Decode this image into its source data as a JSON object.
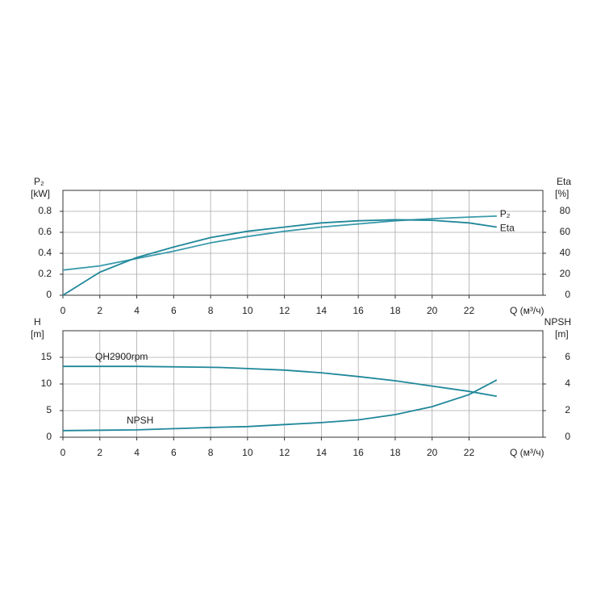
{
  "chart_data": [
    {
      "type": "line",
      "ylabel": "P₂",
      "yunit": "[kW]",
      "y2label": "Eta",
      "y2unit": "[%]",
      "xlabel": "Q (м³/ч)",
      "x": [
        0,
        2,
        4,
        6,
        8,
        10,
        12,
        14,
        16,
        18,
        20,
        22,
        23.5
      ],
      "series": [
        {
          "name": "P₂",
          "color": "#3a9aab",
          "axis": "y",
          "values": [
            0.24,
            0.28,
            0.35,
            0.42,
            0.5,
            0.56,
            0.61,
            0.65,
            0.68,
            0.71,
            0.73,
            0.745,
            0.755
          ]
        },
        {
          "name": "Eta",
          "color": "#1f8799",
          "axis": "y2",
          "values": [
            0,
            22,
            36,
            46,
            55,
            61,
            65,
            69,
            71,
            72,
            71.5,
            69,
            65
          ]
        }
      ],
      "xlim": [
        0,
        26
      ],
      "xticks": [
        0,
        2,
        4,
        6,
        8,
        10,
        12,
        14,
        16,
        18,
        20,
        22
      ],
      "ylim": [
        0,
        1
      ],
      "yticks": [
        0,
        0.2,
        0.4,
        0.6,
        0.8
      ],
      "y2lim": [
        0,
        100
      ],
      "y2ticks": [
        0,
        20,
        40,
        60,
        80
      ],
      "grid": true
    },
    {
      "type": "line",
      "ylabel": "H",
      "yunit": "[m]",
      "y2label": "NPSH",
      "y2unit": "[m]",
      "xlabel": "Q (м³/ч)",
      "x": [
        0,
        4,
        8.5,
        10,
        12,
        14,
        16,
        18,
        20,
        22,
        23.5
      ],
      "series": [
        {
          "name": "QH2900rpm",
          "color": "#1f8799",
          "axis": "y",
          "values": [
            13.3,
            13.3,
            13.1,
            12.9,
            12.6,
            12.1,
            11.4,
            10.6,
            9.6,
            8.6,
            7.7
          ]
        },
        {
          "name": "NPSH",
          "color": "#1f8799",
          "axis": "y2",
          "values": [
            0.5,
            0.55,
            0.75,
            0.8,
            0.95,
            1.1,
            1.3,
            1.7,
            2.3,
            3.2,
            4.3
          ]
        }
      ],
      "xlim": [
        0,
        26
      ],
      "xticks": [
        0,
        2,
        4,
        6,
        8,
        10,
        12,
        14,
        16,
        18,
        20,
        22
      ],
      "ylim": [
        0,
        20
      ],
      "yticks": [
        0,
        5,
        10,
        15
      ],
      "y2lim": [
        0,
        8
      ],
      "y2ticks": [
        0,
        2,
        4,
        6
      ],
      "grid": true
    }
  ]
}
